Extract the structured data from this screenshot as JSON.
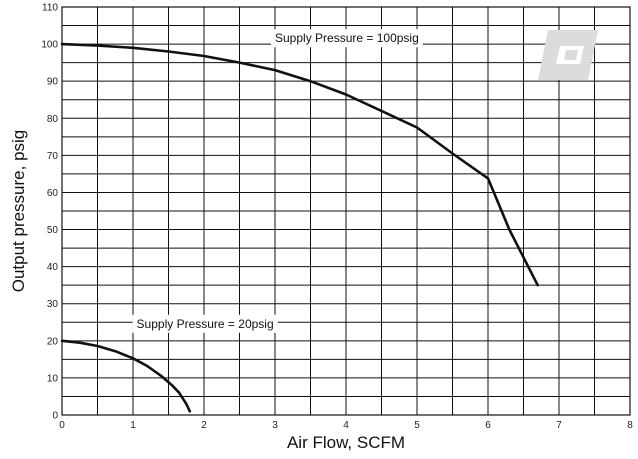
{
  "chart_data": {
    "type": "line",
    "title": "",
    "xlabel": "Air Flow, SCFM",
    "ylabel": "Output pressure, psig",
    "xlim": [
      0,
      8
    ],
    "ylim": [
      0,
      110
    ],
    "x_ticks": [
      0,
      1,
      2,
      3,
      4,
      5,
      6,
      7,
      8
    ],
    "y_ticks": [
      0,
      10,
      20,
      30,
      40,
      50,
      60,
      70,
      80,
      90,
      100,
      110
    ],
    "grid": true,
    "series": [
      {
        "x": [
          0,
          0.5,
          1.0,
          1.5,
          2.0,
          2.5,
          3.0,
          3.5,
          4.0,
          4.5,
          5.0,
          5.5,
          6.0,
          6.3,
          6.7
        ],
        "y": [
          100,
          99.6,
          99,
          98,
          96.8,
          95,
          93,
          90,
          86.4,
          82,
          77.5,
          70.5,
          63.8,
          50,
          35
        ]
      },
      {
        "x": [
          0,
          0.25,
          0.5,
          0.75,
          1.0,
          1.2,
          1.4,
          1.55,
          1.65,
          1.75,
          1.8
        ],
        "y": [
          20,
          19.5,
          18.6,
          17.2,
          15.3,
          13.2,
          10.5,
          8.0,
          6.0,
          3.0,
          1.0
        ]
      }
    ],
    "annotations": [
      {
        "text": "Supply Pressure = 100psig",
        "x": 3.0,
        "y": 100.5
      },
      {
        "text": "Supply Pressure = 20psig",
        "x": 1.05,
        "y": 23.5
      }
    ]
  },
  "colors": {
    "line": "#111111",
    "grid": "#111111",
    "logo": "#dcdcdc"
  },
  "logo": {
    "icon": "brand-logo-icon"
  }
}
